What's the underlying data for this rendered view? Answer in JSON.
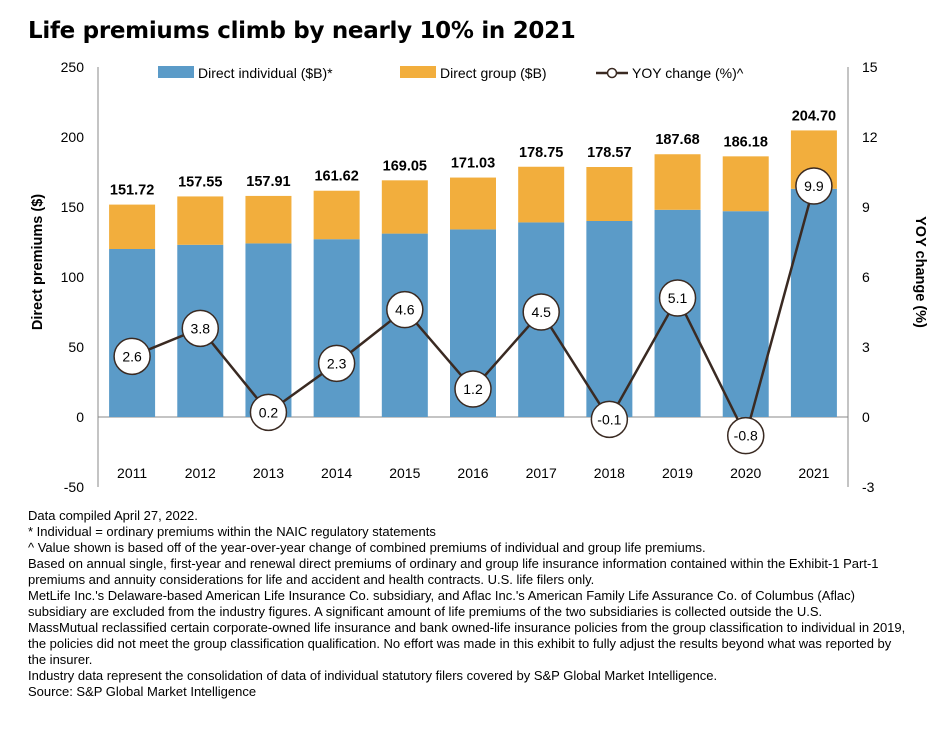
{
  "title": "Life premiums climb by nearly 10% in 2021",
  "chart_data": {
    "type": "bar",
    "stacked": true,
    "categories": [
      "2011",
      "2012",
      "2013",
      "2014",
      "2015",
      "2016",
      "2017",
      "2018",
      "2019",
      "2020",
      "2021"
    ],
    "series": [
      {
        "name": "Direct individual ($B)*",
        "color": "#5b9bc8",
        "values": [
          120,
          123,
          124,
          127,
          131,
          134,
          139,
          140,
          148,
          147,
          163
        ]
      },
      {
        "name": "Direct group ($B)",
        "color": "#f2ae3d",
        "values": [
          31.72,
          34.55,
          33.91,
          34.62,
          38.05,
          37.03,
          39.75,
          38.57,
          39.68,
          39.18,
          41.7
        ]
      }
    ],
    "totals": [
      "151.72",
      "157.55",
      "157.91",
      "161.62",
      "169.05",
      "171.03",
      "178.75",
      "178.57",
      "187.68",
      "186.18",
      "204.70"
    ],
    "line_series": {
      "name": "YOY change (%)^",
      "axis": "right",
      "values": [
        2.6,
        3.8,
        0.2,
        2.3,
        4.6,
        1.2,
        4.5,
        -0.1,
        5.1,
        -0.8,
        9.9
      ],
      "labels": [
        "2.6",
        "3.8",
        "0.2",
        "2.3",
        "4.6",
        "1.2",
        "4.5",
        "-0.1",
        "5.1",
        "-0.8",
        "9.9"
      ]
    },
    "ylabel": "Direct premiums ($)",
    "y2label": "YOY change (%)",
    "ylim": [
      -50,
      250
    ],
    "y2lim": [
      -3,
      15
    ],
    "yticks": [
      "250",
      "200",
      "150",
      "100",
      "50",
      "0",
      "-50"
    ],
    "y2ticks": [
      "15",
      "12",
      "9",
      "6",
      "3",
      "0",
      "-3"
    ],
    "grid": false,
    "legend_position": "top"
  },
  "notes": [
    "Data compiled April 27, 2022.",
    "* Individual = ordinary premiums within the NAIC regulatory statements",
    "^ Value shown is based off of the year-over-year change of combined premiums of individual and group life premiums.",
    "Based on annual single, first-year and renewal direct premiums of ordinary and group life insurance information contained within the Exhibit-1 Part-1 premiums and annuity considerations for life and accident and health contracts. U.S. life filers only.",
    "MetLife Inc.'s Delaware-based American Life Insurance Co. subsidiary, and Aflac Inc.'s American Family Life Assurance Co. of Columbus (Aflac) subsidiary are excluded from the industry figures. A significant amount of life premiums of the two subsidiaries is collected outside the U.S.",
    "MassMutual reclassified certain corporate-owned life insurance and bank owned-life insurance policies from the group classification to individual in 2019, the policies did not meet the group classification qualification.  No effort was made in this exhibit to fully adjust the results beyond what was reported by the insurer.",
    "Industry data represent the consolidation of data of individual statutory filers covered by S&P Global Market Intelligence.",
    "Source: S&P Global Market Intelligence"
  ]
}
